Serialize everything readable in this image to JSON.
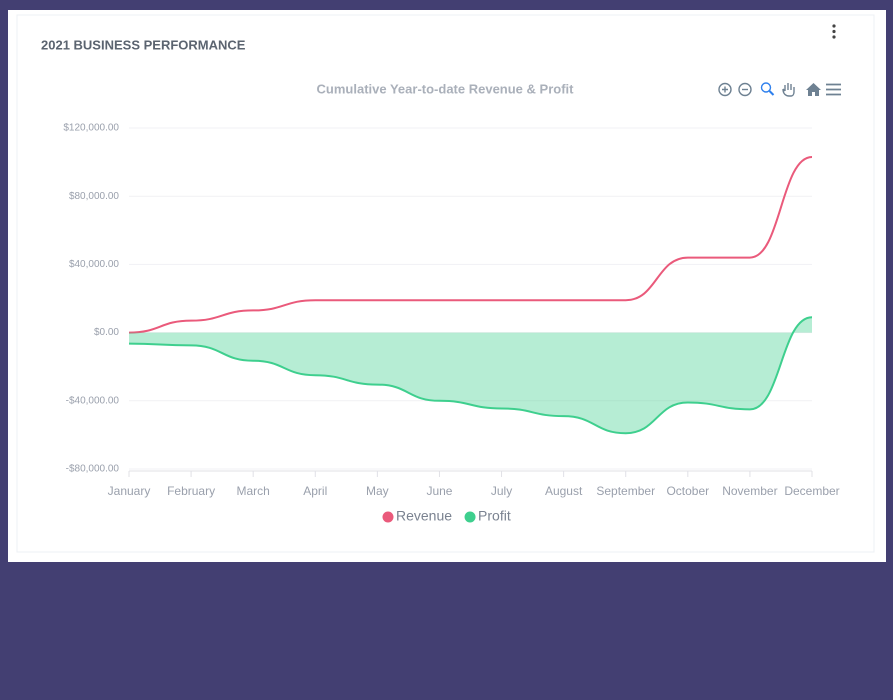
{
  "card_title": "2021 BUSINESS PERFORMANCE",
  "chart_data": {
    "type": "line",
    "title": "Cumulative Year-to-date Revenue & Profit",
    "categories": [
      "January",
      "February",
      "March",
      "April",
      "May",
      "June",
      "July",
      "August",
      "September",
      "October",
      "November",
      "December"
    ],
    "series": [
      {
        "name": "Revenue",
        "color": "#ea5a7b",
        "area": false,
        "values": [
          0,
          7000,
          13000,
          19000,
          19000,
          19000,
          19000,
          19000,
          19000,
          44000,
          44000,
          103000
        ]
      },
      {
        "name": "Profit",
        "color": "#3ecf8e",
        "area": true,
        "values": [
          -6500,
          -7500,
          -16500,
          -25000,
          -30500,
          -40000,
          -44500,
          -49000,
          -59000,
          -41000,
          -45000,
          9000
        ]
      }
    ],
    "ylim": [
      -80000,
      120000
    ],
    "yticks": [
      {
        "value": -80000,
        "label": "-$80,000.00"
      },
      {
        "value": -40000,
        "label": "-$40,000.00"
      },
      {
        "value": 0,
        "label": "$0.00"
      },
      {
        "value": 40000,
        "label": "$40,000.00"
      },
      {
        "value": 80000,
        "label": "$80,000.00"
      },
      {
        "value": 120000,
        "label": "$120,000.00"
      }
    ],
    "grid": true,
    "legend": "bottom"
  }
}
